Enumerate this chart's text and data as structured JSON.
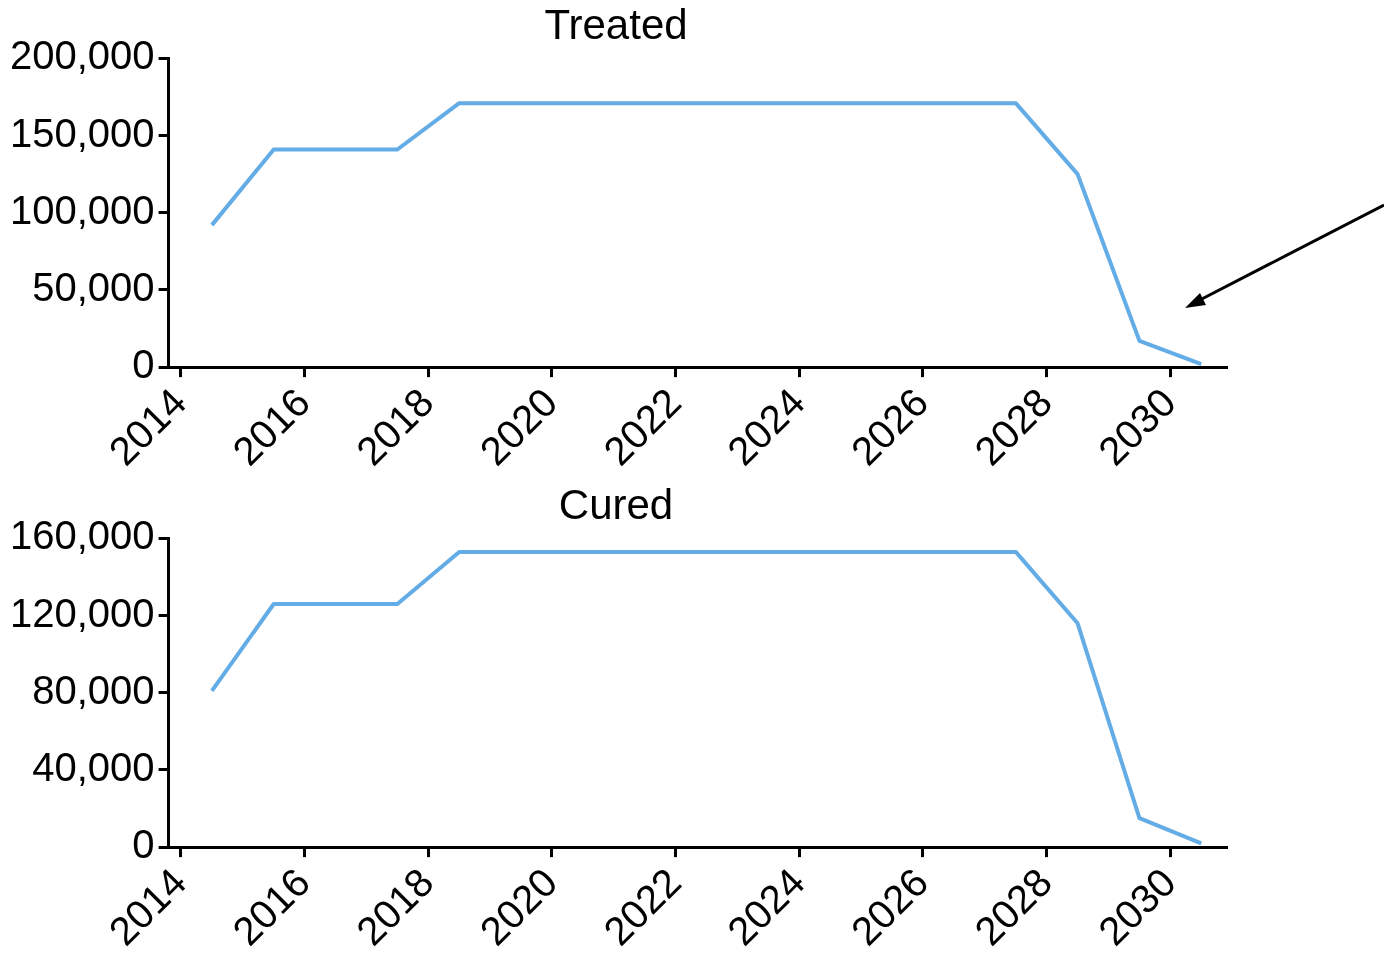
{
  "chart_data": [
    {
      "type": "line",
      "title": "Treated",
      "x": [
        2014.5,
        2015.5,
        2016.5,
        2017.5,
        2018.5,
        2019.5,
        2020.5,
        2021.5,
        2022.5,
        2023.5,
        2024.5,
        2025.5,
        2026.5,
        2027.5,
        2028.5,
        2029.5,
        2030.5
      ],
      "series": [
        {
          "color": "#63ace5",
          "values": [
            92000,
            141000,
            141000,
            141000,
            171000,
            171000,
            171000,
            171000,
            171000,
            171000,
            171000,
            171000,
            171000,
            171000,
            125000,
            17000,
            2000
          ]
        }
      ],
      "xlim": [
        2013.8,
        2030.9
      ],
      "xticks": [
        2014,
        2016,
        2018,
        2020,
        2022,
        2024,
        2026,
        2028,
        2030
      ],
      "ylim": [
        0,
        200000
      ],
      "yticks": [
        0,
        {
          "value": 50000,
          "label": "50,000"
        },
        {
          "value": 100000,
          "label": "100,000"
        },
        {
          "value": 150000,
          "label": "150,000"
        },
        {
          "value": 200000,
          "label": "200,000"
        }
      ]
    },
    {
      "type": "line",
      "title": "Cured",
      "x": [
        2014.5,
        2015.5,
        2016.5,
        2017.5,
        2018.5,
        2019.5,
        2020.5,
        2021.5,
        2022.5,
        2023.5,
        2024.5,
        2025.5,
        2026.5,
        2027.5,
        2028.5,
        2029.5,
        2030.5
      ],
      "series": [
        {
          "color": "#63ace5",
          "values": [
            81000,
            126000,
            126000,
            126000,
            153000,
            153000,
            153000,
            153000,
            153000,
            153000,
            153000,
            153000,
            153000,
            153000,
            116000,
            15000,
            2000
          ]
        }
      ],
      "xlim": [
        2013.8,
        2030.9
      ],
      "xticks": [
        2014,
        2016,
        2018,
        2020,
        2022,
        2024,
        2026,
        2028,
        2030
      ],
      "ylim": [
        0,
        160000
      ],
      "yticks": [
        0,
        {
          "value": 40000,
          "label": "40,000"
        },
        {
          "value": 80000,
          "label": "80,000"
        },
        {
          "value": 120000,
          "label": "120,000"
        },
        {
          "value": 160000,
          "label": "160,000"
        }
      ]
    }
  ]
}
